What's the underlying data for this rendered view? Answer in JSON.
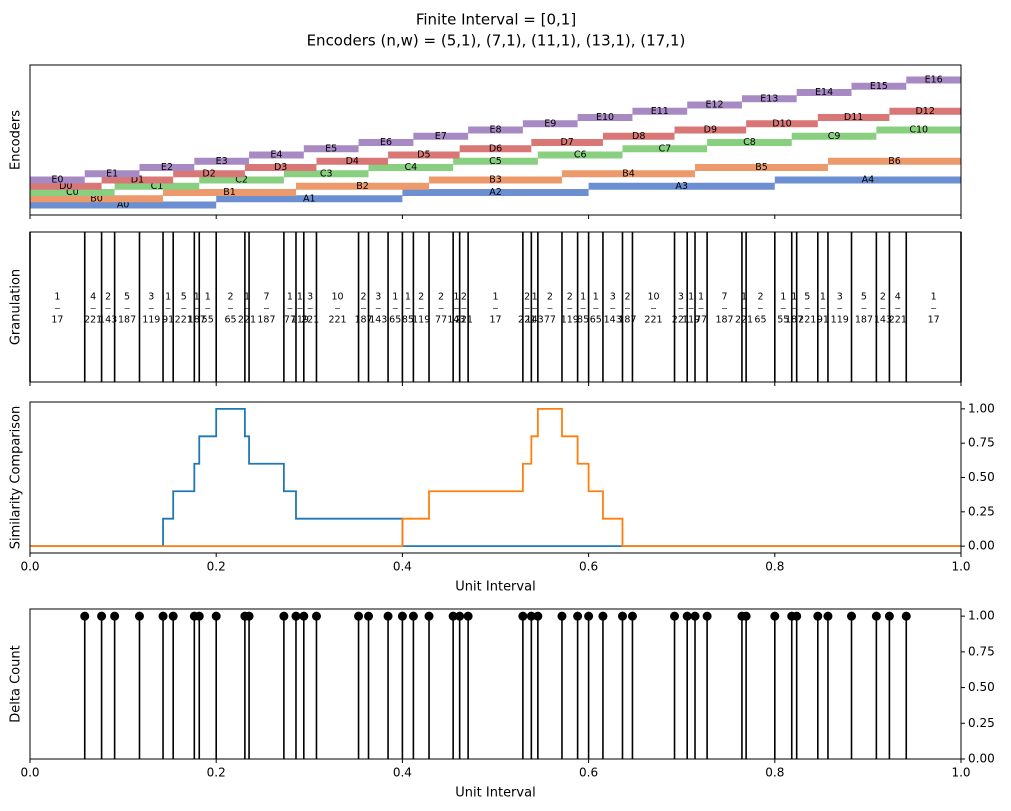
{
  "chart_data": [
    {
      "type": "interval",
      "title": "Finite Interval = [0,1]",
      "subtitle": "Encoders (n,w) = (5,1), (7,1), (11,1), (13,1), (17,1)",
      "ylabel": "Encoders",
      "xlim": [
        0,
        1
      ],
      "xticks": [
        0,
        0.2,
        0.4,
        0.6,
        0.8,
        1
      ],
      "encoders": [
        {
          "color": "#6b8fd0",
          "labels": [
            "A0",
            "A1",
            "A2",
            "A3",
            "A4"
          ],
          "edges": [
            0,
            0.2,
            0.4,
            0.6,
            0.8,
            1
          ]
        },
        {
          "color": "#ec9a6c",
          "labels": [
            "B0",
            "B1",
            "B2",
            "B3",
            "B4",
            "B5",
            "B6"
          ],
          "edges": [
            0,
            0.1429,
            0.2857,
            0.4286,
            0.5714,
            0.7143,
            0.8571,
            1
          ]
        },
        {
          "color": "#88cf80",
          "labels": [
            "C0",
            "C1",
            "C2",
            "C3",
            "C4",
            "C5",
            "C6",
            "C7",
            "C8",
            "C9",
            "C10"
          ],
          "edges": [
            0,
            0.0909,
            0.1818,
            0.2727,
            0.3636,
            0.4545,
            0.5455,
            0.6364,
            0.7273,
            0.8182,
            0.9091,
            1
          ]
        },
        {
          "color": "#d97676",
          "labels": [
            "D0",
            "D1",
            "D2",
            "D3",
            "D4",
            "D5",
            "D6",
            "D7",
            "D8",
            "D9",
            "D10",
            "D11",
            "D12"
          ],
          "edges": [
            0,
            0.0769,
            0.1538,
            0.2308,
            0.3077,
            0.3846,
            0.4615,
            0.5385,
            0.6154,
            0.6923,
            0.7692,
            0.8462,
            0.9231,
            1
          ]
        },
        {
          "color": "#a78ac3",
          "labels": [
            "E0",
            "E1",
            "E2",
            "E3",
            "E4",
            "E5",
            "E6",
            "E7",
            "E8",
            "E9",
            "E10",
            "E11",
            "E12",
            "E13",
            "E14",
            "E15",
            "E16"
          ],
          "edges": [
            0,
            0.0588,
            0.1176,
            0.1765,
            0.2353,
            0.2941,
            0.3529,
            0.4118,
            0.4706,
            0.5294,
            0.5882,
            0.6471,
            0.7059,
            0.7647,
            0.8235,
            0.8824,
            0.9412,
            1
          ]
        }
      ]
    },
    {
      "type": "granulation",
      "ylabel": "Granulation",
      "xlim": [
        0,
        1
      ],
      "xticks": [
        0,
        0.2,
        0.4,
        0.6,
        0.8,
        1
      ],
      "boundaries": [
        0,
        0.0588,
        0.0769,
        0.0909,
        0.1176,
        0.1429,
        0.1538,
        0.1765,
        0.1818,
        0.2,
        0.2308,
        0.2353,
        0.2727,
        0.2857,
        0.2941,
        0.3077,
        0.3529,
        0.3636,
        0.3846,
        0.4,
        0.4118,
        0.4286,
        0.4545,
        0.4615,
        0.4706,
        0.5294,
        0.5385,
        0.5455,
        0.5714,
        0.5882,
        0.6,
        0.6154,
        0.6364,
        0.6471,
        0.6923,
        0.7059,
        0.7143,
        0.7273,
        0.7647,
        0.7692,
        0.8,
        0.8182,
        0.8235,
        0.8462,
        0.8571,
        0.8824,
        0.9091,
        0.9231,
        0.9412,
        1
      ],
      "numerators": [
        1,
        4,
        2,
        5,
        3,
        1,
        5,
        1,
        1,
        2,
        1,
        7,
        1,
        1,
        3,
        10,
        2,
        3,
        1,
        1,
        2,
        2,
        1,
        2,
        1,
        2,
        1,
        2,
        2,
        1,
        1,
        3,
        2,
        10,
        3,
        1,
        1,
        7,
        1,
        2,
        1,
        1,
        5,
        1,
        3,
        5,
        2,
        4,
        1
      ],
      "denominators": [
        17,
        221,
        143,
        187,
        119,
        91,
        221,
        187,
        55,
        65,
        221,
        187,
        77,
        119,
        221,
        221,
        187,
        143,
        65,
        85,
        119,
        77,
        143,
        221,
        17,
        221,
        143,
        77,
        119,
        85,
        65,
        143,
        187,
        221,
        221,
        119,
        77,
        187,
        221,
        65,
        55,
        187,
        221,
        91,
        119,
        187,
        143,
        221,
        17
      ]
    },
    {
      "type": "line",
      "ylabel": "Similarity Comparison",
      "xlabel": "Unit Interval",
      "xlim": [
        0,
        1
      ],
      "ylim": [
        -0.05,
        1.05
      ],
      "xticks": [
        {
          "value": 0,
          "label": "0.0"
        },
        {
          "value": 0.2,
          "label": "0.2"
        },
        {
          "value": 0.4,
          "label": "0.4"
        },
        {
          "value": 0.6,
          "label": "0.6"
        },
        {
          "value": 0.8,
          "label": "0.8"
        },
        {
          "value": 1,
          "label": "1.0"
        }
      ],
      "yticks": [
        {
          "value": 0,
          "label": "0.00"
        },
        {
          "value": 0.25,
          "label": "0.25"
        },
        {
          "value": 0.5,
          "label": "0.50"
        },
        {
          "value": 0.75,
          "label": "0.75"
        },
        {
          "value": 1,
          "label": "1.00"
        }
      ],
      "series": [
        {
          "color": "#1f77b4",
          "x": [
            0,
            0.1429,
            0.1538,
            0.1765,
            0.1818,
            0.2,
            0.2308,
            0.2353,
            0.2727,
            0.2857,
            0.4,
            1
          ],
          "values": [
            0,
            0.2,
            0.4,
            0.6,
            0.8,
            1,
            0.8,
            0.6,
            0.4,
            0.2,
            0,
            0
          ]
        },
        {
          "color": "#ff7f0e",
          "x": [
            0,
            0.4,
            0.4286,
            0.5294,
            0.5385,
            0.5455,
            0.5714,
            0.5882,
            0.6,
            0.6154,
            0.6364,
            1
          ],
          "values": [
            0,
            0.2,
            0.4,
            0.6,
            0.8,
            1,
            0.8,
            0.6,
            0.4,
            0.2,
            0,
            0
          ]
        }
      ]
    },
    {
      "type": "stem",
      "ylabel": "Delta Count",
      "xlabel": "Unit Interval",
      "xlim": [
        0,
        1
      ],
      "ylim": [
        0,
        1.05
      ],
      "color": "#000000",
      "xticks": [
        {
          "value": 0,
          "label": "0.0"
        },
        {
          "value": 0.2,
          "label": "0.2"
        },
        {
          "value": 0.4,
          "label": "0.4"
        },
        {
          "value": 0.6,
          "label": "0.6"
        },
        {
          "value": 0.8,
          "label": "0.8"
        },
        {
          "value": 1,
          "label": "1.0"
        }
      ],
      "yticks": [
        {
          "value": 0,
          "label": "0.00"
        },
        {
          "value": 0.25,
          "label": "0.25"
        },
        {
          "value": 0.5,
          "label": "0.50"
        },
        {
          "value": 0.75,
          "label": "0.75"
        },
        {
          "value": 1,
          "label": "1.00"
        }
      ],
      "x": [
        0.0588,
        0.0769,
        0.0909,
        0.1176,
        0.1429,
        0.1538,
        0.1765,
        0.1818,
        0.2,
        0.2308,
        0.2353,
        0.2727,
        0.2857,
        0.2941,
        0.3077,
        0.3529,
        0.3636,
        0.3846,
        0.4,
        0.4118,
        0.4286,
        0.4545,
        0.4615,
        0.4706,
        0.5294,
        0.5385,
        0.5455,
        0.5714,
        0.5882,
        0.6,
        0.6154,
        0.6364,
        0.6471,
        0.6923,
        0.7059,
        0.7143,
        0.7273,
        0.7647,
        0.7692,
        0.8,
        0.8182,
        0.8235,
        0.8462,
        0.8571,
        0.8824,
        0.9091,
        0.9231,
        0.9412
      ],
      "values": [
        1,
        1,
        1,
        1,
        1,
        1,
        1,
        1,
        1,
        1,
        1,
        1,
        1,
        1,
        1,
        1,
        1,
        1,
        1,
        1,
        1,
        1,
        1,
        1,
        1,
        1,
        1,
        1,
        1,
        1,
        1,
        1,
        1,
        1,
        1,
        1,
        1,
        1,
        1,
        1,
        1,
        1,
        1,
        1,
        1,
        1,
        1,
        1
      ]
    }
  ]
}
